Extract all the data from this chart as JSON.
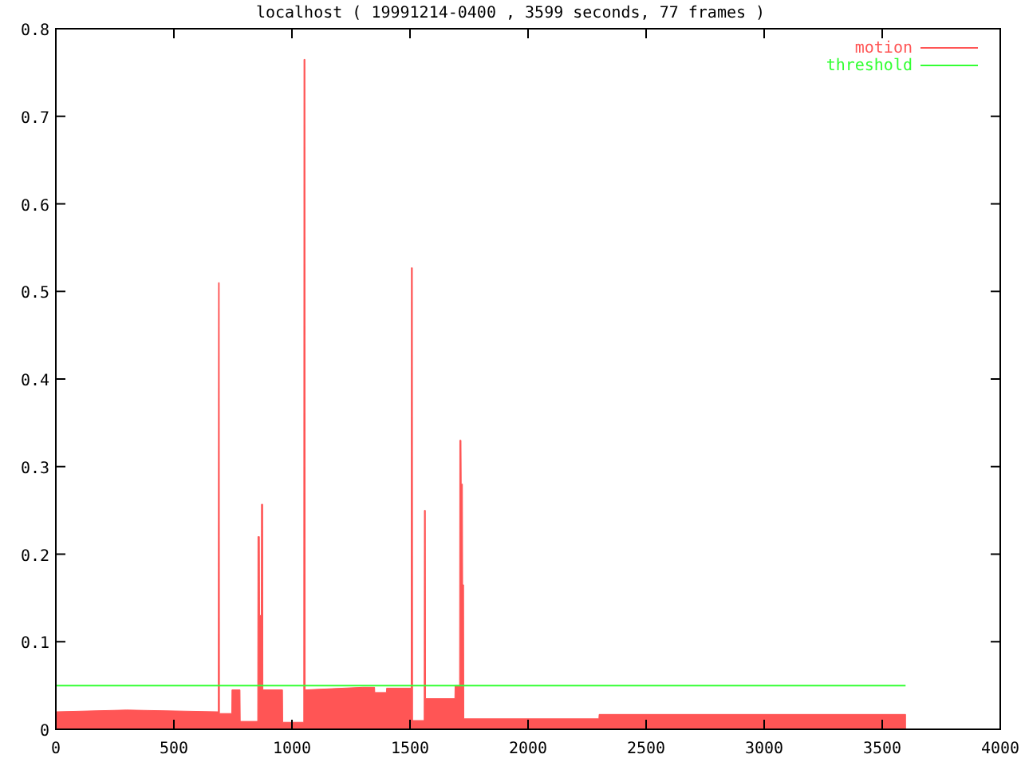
{
  "chart_data": {
    "type": "area",
    "title": "localhost ( 19991214-0400 , 3599 seconds, 77 frames )",
    "xlim": [
      0,
      4000
    ],
    "xticks": [
      0,
      500,
      1000,
      1500,
      2000,
      2500,
      3000,
      3500,
      4000
    ],
    "ylim": [
      0,
      0.8
    ],
    "yticks": [
      0,
      0.1,
      0.2,
      0.3,
      0.4,
      0.5,
      0.6,
      0.7,
      0.8
    ],
    "grid": false,
    "legend": "top right",
    "line_style": "solid",
    "series": [
      {
        "name": "motion",
        "color": "#ff5555",
        "x": [
          0,
          300,
          688,
          689,
          692,
          693,
          745,
          746,
          780,
          781,
          855,
          856,
          862,
          863,
          870,
          871,
          876,
          877,
          960,
          961,
          1050,
          1051,
          1055,
          1056,
          1300,
          1350,
          1351,
          1400,
          1401,
          1505,
          1506,
          1510,
          1511,
          1560,
          1561,
          1565,
          1566,
          1690,
          1691,
          1710,
          1711,
          1716,
          1717,
          1722,
          1723,
          1727,
          1728,
          2300,
          2301,
          3599
        ],
        "values": [
          0.02,
          0.022,
          0.02,
          0.51,
          0.51,
          0.018,
          0.018,
          0.045,
          0.045,
          0.009,
          0.009,
          0.22,
          0.22,
          0.13,
          0.13,
          0.257,
          0.257,
          0.045,
          0.045,
          0.008,
          0.008,
          0.765,
          0.765,
          0.045,
          0.048,
          0.048,
          0.042,
          0.042,
          0.047,
          0.047,
          0.527,
          0.527,
          0.01,
          0.01,
          0.25,
          0.25,
          0.035,
          0.035,
          0.05,
          0.05,
          0.33,
          0.33,
          0.28,
          0.28,
          0.165,
          0.165,
          0.012,
          0.012,
          0.017,
          0.017
        ]
      },
      {
        "name": "threshold",
        "type": "line",
        "color": "#33ff33",
        "x": [
          0,
          3599
        ],
        "values": [
          0.05,
          0.05
        ]
      }
    ]
  }
}
